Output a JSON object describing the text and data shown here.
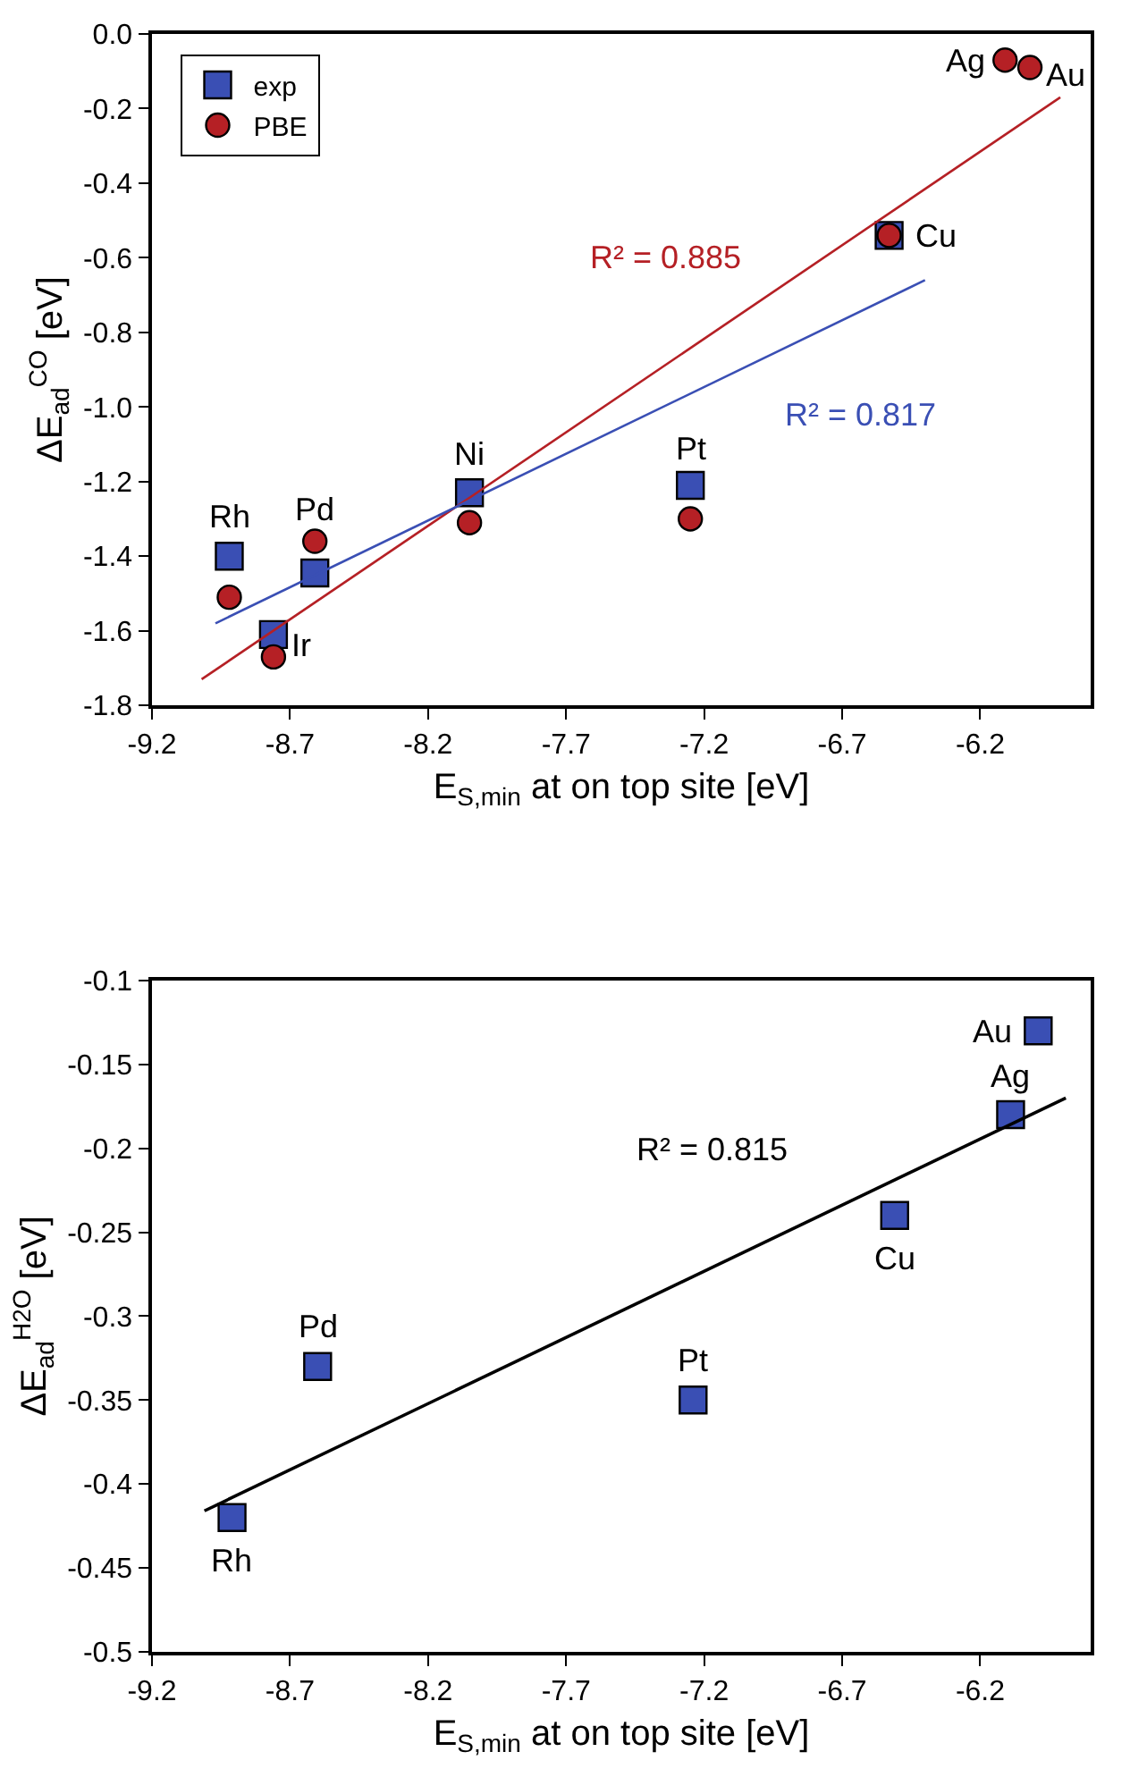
{
  "chart_data": [
    {
      "type": "scatter",
      "xlabel": "E$_{S,min}$ at on top site [eV]",
      "ylabel": "ΔE$_{ad}$$^{CO}$ [eV]",
      "xlim": [
        -9.2,
        -5.8
      ],
      "xticks": [
        -9.2,
        -8.7,
        -8.2,
        -7.7,
        -7.2,
        -6.7,
        -6.2
      ],
      "ylim": [
        -1.8,
        0
      ],
      "yticks": [
        -1.8,
        -1.6,
        -1.4,
        -1.2,
        {
          "value": -1.0,
          "label": "-1.0"
        },
        -0.8,
        -0.6,
        -0.4,
        -0.2,
        {
          "value": 0,
          "label": "0.0"
        }
      ],
      "legend": "top left",
      "series": [
        {
          "name": "exp",
          "color": "#3a4fb4",
          "marker": "square",
          "x": [
            -8.92,
            -8.76,
            -8.61,
            -8.05,
            -7.25,
            -6.53
          ],
          "values": [
            -1.4,
            -1.61,
            -1.445,
            -1.23,
            -1.21,
            -0.54
          ]
        },
        {
          "name": "PBE",
          "color": "#b52025",
          "marker": "circle",
          "x": [
            -8.92,
            -8.76,
            -8.61,
            -8.05,
            -7.25,
            -6.53,
            -6.11,
            -6.02
          ],
          "values": [
            -1.51,
            -1.67,
            -1.36,
            -1.31,
            -1.3,
            -0.54,
            -0.07,
            -0.09
          ]
        },
        {
          "name": "R² = 0.885",
          "type": "line",
          "color": "#b52025",
          "x": [
            -9.02,
            -5.91
          ],
          "values": [
            -1.73,
            -0.17
          ]
        },
        {
          "name": "R² = 0.817",
          "type": "line",
          "color": "#3a4fb4",
          "x": [
            -8.97,
            -6.4
          ],
          "values": [
            -1.58,
            -0.66
          ]
        }
      ],
      "annotations": [
        {
          "text": "Rh",
          "x": -8.92,
          "y": -1.4
        },
        {
          "text": "Ir",
          "x": -8.76,
          "y": -1.61
        },
        {
          "text": "Pd",
          "x": -8.61,
          "y": -1.445
        },
        {
          "text": "Ni",
          "x": -8.05,
          "y": -1.23
        },
        {
          "text": "Pt",
          "x": -7.25,
          "y": -1.21
        },
        {
          "text": "Cu",
          "x": -6.53,
          "y": -0.54
        },
        {
          "text": "Ag",
          "x": -6.11,
          "y": -0.07
        },
        {
          "text": "Au",
          "x": -6.02,
          "y": -0.09
        }
      ]
    },
    {
      "type": "scatter",
      "xlabel": "E$_{S,min}$ at on top site [eV]",
      "ylabel": "ΔE$_{ad}$$^{H2O}$ [eV]",
      "xlim": [
        -9.2,
        -5.8
      ],
      "xticks": [
        -9.2,
        -8.7,
        -8.2,
        -7.7,
        -7.2,
        -6.7,
        -6.2
      ],
      "ylim": [
        -0.5,
        -0.1
      ],
      "yticks": [
        -0.5,
        -0.45,
        -0.4,
        -0.35,
        -0.3,
        -0.25,
        -0.2,
        -0.15,
        -0.1
      ],
      "series": [
        {
          "color": "#3a4fb4",
          "marker": "square",
          "x": [
            -8.91,
            -8.6,
            -7.24,
            -6.51,
            -6.09,
            -5.99
          ],
          "values": [
            -0.42,
            -0.33,
            -0.35,
            -0.24,
            -0.18,
            -0.13
          ]
        },
        {
          "name": "R² = 0.815",
          "type": "line",
          "color": "#000000",
          "x": [
            -9.01,
            -5.89
          ],
          "values": [
            -0.416,
            -0.17
          ]
        }
      ],
      "annotations": [
        {
          "text": "Rh",
          "x": -8.91,
          "y": -0.42
        },
        {
          "text": "Pd",
          "x": -8.6,
          "y": -0.33
        },
        {
          "text": "Pt",
          "x": -7.24,
          "y": -0.35
        },
        {
          "text": "Cu",
          "x": -6.51,
          "y": -0.24
        },
        {
          "text": "Ag",
          "x": -6.09,
          "y": -0.18
        },
        {
          "text": "Au",
          "x": -5.99,
          "y": -0.13
        }
      ]
    }
  ]
}
